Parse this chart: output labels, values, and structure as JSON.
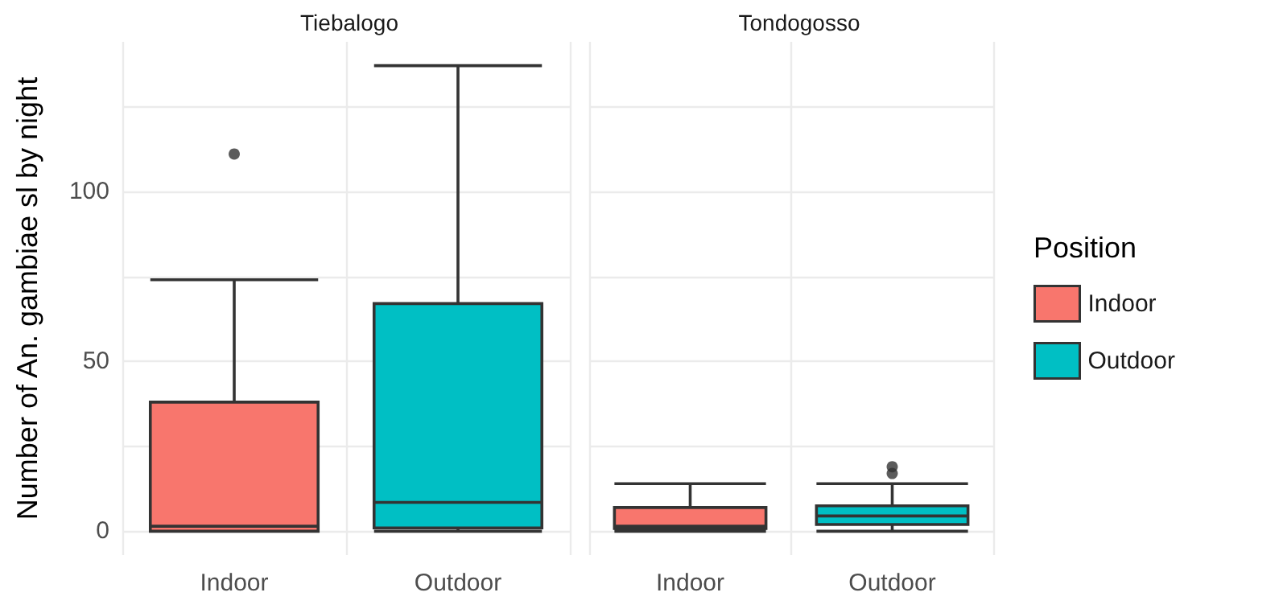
{
  "chart_data": [
    {
      "type": "box",
      "title": "Tiebalogo",
      "ylabel": "Number of An. gambiae sl by night",
      "categories": [
        "Indoor",
        "Outdoor"
      ],
      "ylim": [
        -7,
        144
      ],
      "yticks": [
        0,
        {
          "value": 25,
          "label": null
        },
        50,
        {
          "value": 75,
          "label": null
        },
        100,
        {
          "value": 125,
          "label": null
        }
      ],
      "grid": true,
      "legend": false,
      "series": [
        {
          "color": "#f8766d",
          "boxes": [
            {
              "low": 0,
              "q1": 0,
              "median": 1.5,
              "q3": 38,
              "high": 74,
              "outliers": [
                111
              ]
            },
            null
          ]
        },
        {
          "color": "#00bfc4",
          "boxes": [
            null,
            {
              "low": 0,
              "q1": 1,
              "median": 8.5,
              "q3": 67,
              "high": 137
            }
          ]
        }
      ]
    },
    {
      "type": "box",
      "title": "Tondogosso",
      "categories": [
        "Indoor",
        "Outdoor"
      ],
      "ylim": [
        -7,
        144
      ],
      "yticks": [
        0,
        {
          "value": 25,
          "label": null
        },
        50,
        {
          "value": 75,
          "label": null
        },
        100,
        {
          "value": 125,
          "label": null
        }
      ],
      "tick_labels": "x",
      "grid": true,
      "legend": "right",
      "legend_title": "Position",
      "series": [
        {
          "name": "Indoor",
          "color": "#f8766d",
          "boxes": [
            {
              "low": 0,
              "q1": 0.8,
              "median": 1.5,
              "q3": 7,
              "high": 14
            },
            null
          ]
        },
        {
          "name": "Outdoor",
          "color": "#00bfc4",
          "boxes": [
            null,
            {
              "low": 0,
              "q1": 2,
              "median": 4.5,
              "q3": 7.5,
              "high": 14,
              "outliers": [
                17,
                19
              ]
            }
          ]
        }
      ]
    }
  ]
}
